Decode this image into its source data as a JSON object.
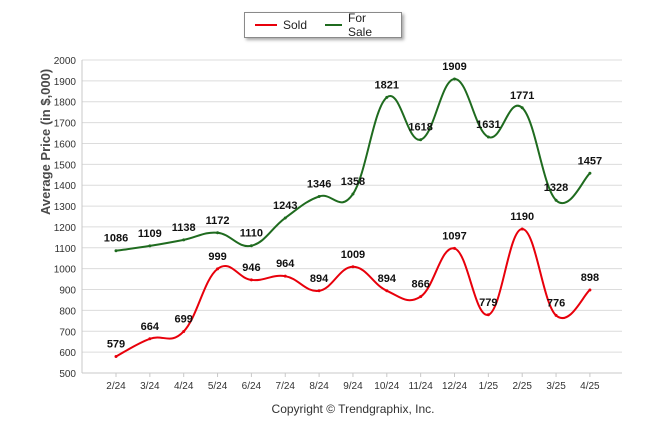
{
  "legend": {
    "sold_label": "Sold",
    "for_sale_label": "For Sale"
  },
  "footer": {
    "copyright": "Copyright © Trendgraphix, Inc."
  },
  "chart_data": {
    "type": "line",
    "title": "",
    "xlabel": "",
    "ylabel": "Average Price (in $,000)",
    "ylim": [
      500,
      2000
    ],
    "yticks": [
      500,
      600,
      700,
      800,
      900,
      1000,
      1100,
      1200,
      1300,
      1400,
      1500,
      1600,
      1700,
      1800,
      1900,
      2000
    ],
    "grid": true,
    "legend_position": "top-center",
    "categories": [
      "2/24",
      "3/24",
      "4/24",
      "5/24",
      "6/24",
      "7/24",
      "8/24",
      "9/24",
      "10/24",
      "11/24",
      "12/24",
      "1/25",
      "2/25",
      "3/25",
      "4/25"
    ],
    "series": [
      {
        "name": "Sold",
        "color": "#e8000b",
        "values": [
          579,
          664,
          699,
          999,
          946,
          964,
          894,
          1009,
          894,
          866,
          1097,
          779,
          1190,
          776,
          898
        ]
      },
      {
        "name": "For Sale",
        "color": "#1f6b1f",
        "values": [
          1086,
          1109,
          1138,
          1172,
          1110,
          1243,
          1346,
          1358,
          1821,
          1618,
          1909,
          1631,
          1771,
          1328,
          1457
        ]
      }
    ]
  }
}
